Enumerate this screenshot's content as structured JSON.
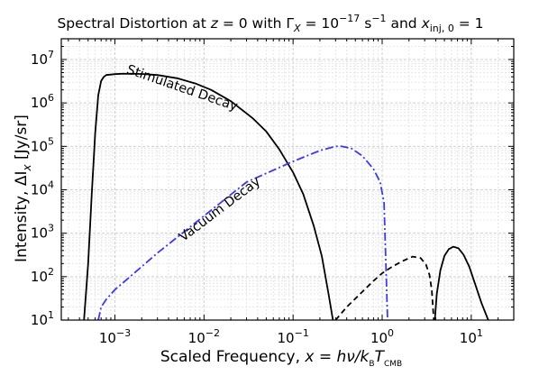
{
  "chart_data": {
    "type": "line",
    "title": "Spectral Distortion at z = 0 with Γ_X = 10^−17 s^−1 and x_inj,0 = 1",
    "xlabel": "Scaled Frequency, x = hν/k_B T_CMB",
    "ylabel": "Intensity, ΔI_x   [Jy/sr]",
    "x_scale": "log",
    "y_scale": "log",
    "xlim": [
      0.00025,
      30
    ],
    "ylim": [
      10,
      30000000
    ],
    "x_ticks": [
      0.001,
      0.01,
      0.1,
      1,
      10
    ],
    "x_tick_labels": [
      "10",
      "10",
      "10",
      "10",
      "10"
    ],
    "x_tick_exponents": [
      "−3",
      "−2",
      "−1",
      "0",
      "1"
    ],
    "y_ticks": [
      10,
      100,
      1000,
      10000,
      100000,
      1000000,
      10000000
    ],
    "y_tick_labels": [
      "10",
      "10",
      "10",
      "10",
      "10",
      "10",
      "10"
    ],
    "y_tick_exponents": [
      "1",
      "2",
      "3",
      "4",
      "5",
      "6",
      "7"
    ],
    "grid": true,
    "annotations": [
      {
        "text": "Stimulated Decay",
        "x": 0.0055,
        "y": 1800000,
        "angle_deg": 19
      },
      {
        "text": "Vacuum Decay",
        "x": 0.016,
        "y": 3000,
        "angle_deg": -37
      }
    ],
    "series": [
      {
        "label": "Stimulated Decay",
        "color": "#000000",
        "style": "solid",
        "x": [
          0.00045,
          0.0005,
          0.00055,
          0.0006,
          0.00065,
          0.0007,
          0.00075,
          0.0008,
          0.0009,
          0.001,
          0.0012,
          0.0015,
          0.002,
          0.003,
          0.005,
          0.008,
          0.012,
          0.02,
          0.035,
          0.05,
          0.07,
          0.1,
          0.13,
          0.17,
          0.21,
          0.25,
          0.28
        ],
        "y": [
          10,
          200,
          8000,
          200000,
          1500000,
          3200000,
          4000000,
          4400000,
          4500000,
          4600000,
          4700000,
          4700000,
          4650000,
          4400000,
          3700000,
          2800000,
          2000000,
          1100000,
          450000,
          220000,
          85000,
          25000,
          8000,
          1500,
          300,
          40,
          10
        ]
      },
      {
        "label": "Vacuum Decay",
        "color": "#3a3aee",
        "style": "dashdot",
        "x": [
          0.00065,
          0.0007,
          0.0008,
          0.001,
          0.003,
          0.01,
          0.03,
          0.1,
          0.2,
          0.3,
          0.35,
          0.45,
          0.6,
          0.8,
          0.95,
          1.05,
          1.1,
          1.15
        ],
        "y": [
          10,
          20,
          30,
          50,
          350,
          2500,
          15000,
          45000,
          80000,
          100000,
          100000,
          90000,
          60000,
          30000,
          15000,
          5000,
          200,
          10
        ]
      },
      {
        "label": "Dashed distortion",
        "color": "#000000",
        "style": "dashed",
        "x": [
          0.3,
          0.4,
          0.6,
          0.8,
          1.0,
          1.3,
          1.7,
          2.2,
          2.7,
          3.1,
          3.4,
          3.6,
          3.8
        ],
        "y": [
          10,
          20,
          45,
          80,
          120,
          170,
          230,
          290,
          270,
          190,
          110,
          50,
          10
        ]
      },
      {
        "label": "High-frequency positive lobe",
        "color": "#000000",
        "style": "solid",
        "x": [
          3.9,
          4.1,
          4.5,
          5.0,
          5.6,
          6.3,
          7.2,
          8.2,
          9.5,
          11,
          13,
          15.5
        ],
        "y": [
          10,
          40,
          140,
          300,
          430,
          490,
          450,
          320,
          170,
          70,
          25,
          10
        ]
      }
    ]
  }
}
